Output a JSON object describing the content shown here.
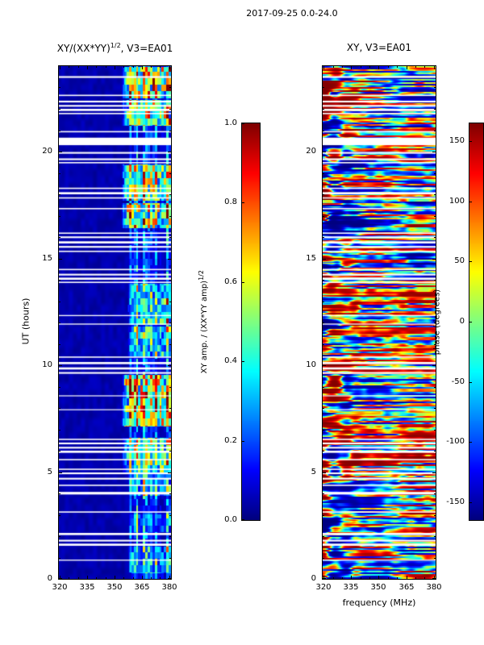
{
  "figure_title": "2017-09-25 0.0-24.0",
  "left_panel": {
    "title_prefix": "XY/(XX*YY)",
    "title_sup": "1/2",
    "title_suffix": ", V3=EA01",
    "ylabel": "UT (hours)"
  },
  "right_panel": {
    "title": "XY, V3=EA01",
    "xlabel": "frequency (MHz)"
  },
  "left_colorbar": {
    "label_prefix": "XY amp. / (XX*YY amp)",
    "label_sup": "1/2",
    "ticks": [
      "0.0",
      "0.2",
      "0.4",
      "0.6",
      "0.8",
      "1.0"
    ]
  },
  "right_colorbar": {
    "label": "phase (degrees)",
    "ticks": [
      "-150",
      "-100",
      "-50",
      "0",
      "50",
      "100",
      "150"
    ]
  },
  "chart_data": [
    {
      "type": "heatmap",
      "title": "XY/(XX*YY)^(1/2), V3=EA01",
      "xlabel": "frequency (MHz)",
      "ylabel": "UT (hours)",
      "xlim": [
        319.5,
        381.0
      ],
      "ylim": [
        0,
        24
      ],
      "xticks": [
        320,
        335,
        350,
        365,
        380
      ],
      "xticklabels": [
        "320",
        "335",
        "350",
        "365",
        "380"
      ],
      "yticks": [
        0,
        5,
        10,
        15,
        20
      ],
      "yticklabels": [
        "0",
        "5",
        "10",
        "15",
        "20"
      ],
      "colormap": "jet",
      "colorbar": {
        "label": "XY amp. / (XX*YY amp)^(1/2)",
        "range": [
          0.0,
          1.0
        ],
        "ticks": [
          0.0,
          0.2,
          0.4,
          0.6,
          0.8,
          1.0
        ]
      },
      "description": "Cross-correlation coherence amplitude vs frequency and UT. Near zero (dark blue) below ~357 MHz; intermittent high-coherence vertical stripes in the 357-381 MHz band; horizontal white bands are missing data.",
      "active_band_mhz": [
        357,
        381
      ],
      "bursts_ut": [
        [
          0.25,
          1.5,
          0.3
        ],
        [
          2.2,
          3.0,
          0.18
        ],
        [
          3.9,
          5.0,
          0.35
        ],
        [
          5.0,
          6.6,
          0.7
        ],
        [
          7.15,
          9.55,
          1.0
        ],
        [
          10.4,
          11.8,
          0.45
        ],
        [
          11.9,
          13.8,
          0.5
        ],
        [
          16.4,
          17.6,
          0.8
        ],
        [
          17.7,
          19.4,
          0.7
        ],
        [
          21.2,
          22.4,
          0.75
        ],
        [
          22.5,
          23.95,
          0.85
        ]
      ],
      "gaps_ut": [
        [
          0.85,
          0.05
        ],
        [
          1.55,
          0.1
        ],
        [
          1.75,
          0.08
        ],
        [
          2.05,
          0.1
        ],
        [
          3.1,
          0.06
        ],
        [
          3.95,
          0.12
        ],
        [
          4.35,
          0.06
        ],
        [
          4.65,
          0.08
        ],
        [
          4.9,
          0.08
        ],
        [
          5.1,
          0.06
        ],
        [
          5.55,
          0.06
        ],
        [
          5.9,
          0.1
        ],
        [
          6.1,
          0.08
        ],
        [
          6.3,
          0.08
        ],
        [
          6.5,
          0.06
        ],
        [
          7.9,
          0.04
        ],
        [
          8.55,
          0.04
        ],
        [
          9.6,
          0.08
        ],
        [
          9.8,
          0.1
        ],
        [
          10.05,
          0.1
        ],
        [
          10.35,
          0.06
        ],
        [
          11.9,
          0.05
        ],
        [
          12.3,
          0.05
        ],
        [
          13.85,
          0.06
        ],
        [
          14.0,
          0.1
        ],
        [
          14.2,
          0.08
        ],
        [
          14.45,
          0.06
        ],
        [
          15.3,
          0.06
        ],
        [
          15.5,
          0.08
        ],
        [
          15.7,
          0.1
        ],
        [
          15.95,
          0.08
        ],
        [
          16.15,
          0.06
        ],
        [
          17.3,
          0.06
        ],
        [
          17.8,
          0.06
        ],
        [
          18.0,
          0.1
        ],
        [
          18.25,
          0.06
        ],
        [
          19.45,
          0.06
        ],
        [
          19.6,
          0.08
        ],
        [
          19.9,
          0.08
        ],
        [
          20.3,
          0.35
        ],
        [
          20.9,
          0.06
        ],
        [
          21.75,
          0.06
        ],
        [
          21.9,
          0.1
        ],
        [
          22.1,
          0.08
        ],
        [
          22.3,
          0.08
        ],
        [
          22.6,
          0.06
        ],
        [
          23.45,
          0.08
        ]
      ]
    },
    {
      "type": "heatmap",
      "title": "XY, V3=EA01",
      "xlabel": "frequency (MHz)",
      "ylabel": "UT (hours)",
      "xlim": [
        319.5,
        381.0
      ],
      "ylim": [
        0,
        24
      ],
      "xticks": [
        320,
        335,
        350,
        365,
        380
      ],
      "xticklabels": [
        "320",
        "335",
        "350",
        "365",
        "380"
      ],
      "yticks": [
        0,
        5,
        10,
        15,
        20
      ],
      "yticklabels": [
        "0",
        "5",
        "10",
        "15",
        "20"
      ],
      "colormap": "jet",
      "colorbar": {
        "label": "phase (degrees)",
        "range": [
          -165,
          165
        ],
        "ticks": [
          -150,
          -100,
          -50,
          0,
          50,
          100,
          150
        ]
      },
      "description": "XY cross-correlation phase vs frequency and UT. Noisy full-range phase structure with horizontal streaks; strongest saturation below ~340 MHz; same white data-gap rows as the left panel.",
      "gaps_shared_with_left": true
    }
  ]
}
